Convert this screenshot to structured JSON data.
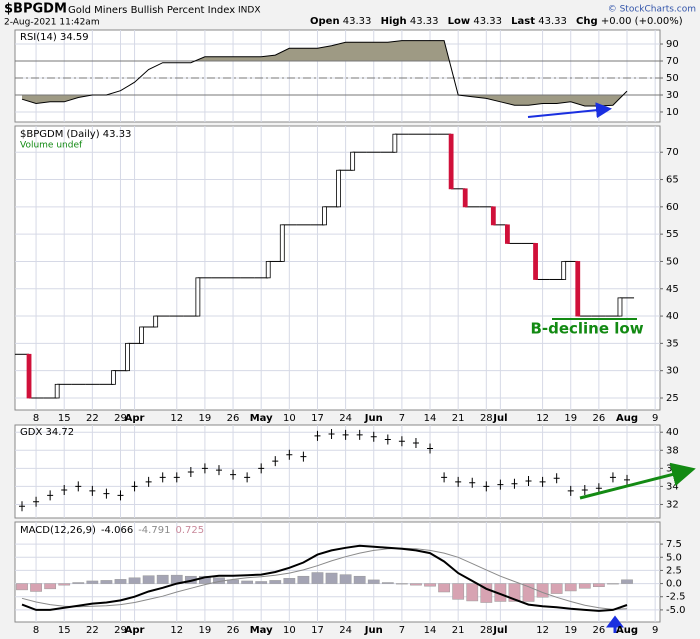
{
  "header": {
    "symbol": "$BPGDM",
    "name": "Gold Miners Bullish Percent Index",
    "exchange": "INDX",
    "date": "2-Aug-2021 11:42am",
    "quote": [
      {
        "label": "Open",
        "value": "43.33"
      },
      {
        "label": "High",
        "value": "43.33"
      },
      {
        "label": "Low",
        "value": "43.33"
      },
      {
        "label": "Last",
        "value": "43.33"
      },
      {
        "label": "Chg",
        "value": "+0.00 (+0.00%)"
      }
    ],
    "copyright": "© StockCharts.com"
  },
  "chart_data": [
    {
      "type": "line",
      "title": "RSI(14) 34.59",
      "color": "#000000",
      "fill_color": "#9e9a84",
      "overbought": 70,
      "midline": 50,
      "oversold": 30,
      "values": [
        25,
        20,
        22,
        22,
        27,
        30,
        30,
        35,
        45,
        60,
        68,
        68,
        68,
        75,
        75,
        75,
        75,
        75,
        77,
        85,
        85,
        85,
        88,
        92,
        92,
        92,
        92,
        94,
        94,
        94,
        94,
        30,
        28,
        26,
        22,
        18,
        18,
        20,
        20,
        22,
        17,
        17,
        18,
        34.59,
        null,
        null
      ],
      "ylim": [
        -1.8,
        106.5
      ],
      "yticks": [
        10,
        30,
        50,
        70,
        90
      ],
      "grid": true
    },
    {
      "type": "step",
      "title": "$BPGDM (Daily) 43.33",
      "subtitle": "Volume undef",
      "color_up": "#ffffff",
      "color_down": "#d0103a",
      "categories": [
        null,
        "8",
        null,
        "15",
        null,
        "22",
        null,
        "29",
        "Apr",
        null,
        null,
        "12",
        null,
        "19",
        null,
        "26",
        null,
        "May",
        null,
        "10",
        null,
        "17",
        null,
        "24",
        null,
        "Jun",
        null,
        "7",
        null,
        "14",
        null,
        "21",
        null,
        "28",
        "Jul",
        null,
        null,
        "12",
        null,
        "19",
        null,
        "26",
        null,
        "Aug",
        null,
        "9"
      ],
      "values": [
        33,
        25,
        25,
        27.5,
        27.5,
        27.5,
        27.5,
        30,
        35,
        38,
        40,
        40,
        40,
        47,
        47,
        47,
        47,
        47,
        50,
        56.7,
        56.7,
        56.7,
        60,
        66.7,
        70,
        70,
        70,
        73.3,
        73.3,
        73.3,
        73.3,
        63.3,
        60,
        60,
        56.7,
        53.3,
        53.3,
        46.7,
        46.7,
        50,
        40,
        40,
        40,
        43.33,
        null,
        null
      ],
      "ylim": [
        22.8,
        74.8
      ],
      "yticks": [
        25,
        30,
        35,
        40,
        45,
        50,
        55,
        60,
        65,
        70
      ],
      "grid": true,
      "annotations": [
        {
          "text": "B-decline low",
          "color": "#138a13"
        }
      ]
    },
    {
      "type": "ohlc",
      "title": "GDX 34.72",
      "color": "#000000",
      "values": [
        31.8,
        32.3,
        33,
        33.6,
        34,
        33.5,
        33.2,
        33,
        34,
        34.5,
        35,
        35,
        35.6,
        36,
        35.8,
        35.3,
        35,
        36,
        36.8,
        37.5,
        37.3,
        39.6,
        39.8,
        39.7,
        39.7,
        39.5,
        39.2,
        39,
        38.8,
        38.2,
        35,
        34.5,
        34.4,
        34,
        34.2,
        34.3,
        34.6,
        34.5,
        34.9,
        33.5,
        33.6,
        33.8,
        35,
        34.72,
        null,
        null
      ],
      "ylim": [
        30.5,
        40.8
      ],
      "yticks": [
        32,
        34,
        36,
        38,
        40
      ],
      "grid": true
    },
    {
      "type": "macd",
      "title": "MACD(12,26,9)",
      "categories": [
        null,
        "8",
        null,
        "15",
        null,
        "22",
        null,
        "29",
        "Apr",
        null,
        null,
        "12",
        null,
        "19",
        null,
        "26",
        null,
        "May",
        null,
        "10",
        null,
        "17",
        null,
        "24",
        null,
        "Jun",
        null,
        "7",
        null,
        "14",
        null,
        "21",
        null,
        "28",
        "Jul",
        null,
        null,
        "12",
        null,
        "19",
        null,
        "26",
        null,
        "Aug",
        null,
        "9"
      ],
      "series": [
        {
          "name": "-4.066",
          "color": "#000000",
          "values": [
            -4,
            -5,
            -5,
            -4.6,
            -4.2,
            -3.8,
            -3.6,
            -3.2,
            -2.5,
            -1.5,
            -0.8,
            0,
            0.5,
            1.2,
            1.5,
            1.5,
            1.6,
            1.7,
            2.2,
            3,
            4,
            5.5,
            6.3,
            6.8,
            7.2,
            7,
            6.8,
            6.6,
            6.3,
            5.8,
            4.2,
            2,
            0.5,
            -1,
            -2,
            -3,
            -4,
            -4.3,
            -4.5,
            -4.8,
            -5,
            -5.2,
            -5,
            -4.066,
            null,
            null
          ]
        },
        {
          "name": "-4.791",
          "color": "#8a8a8a",
          "values": [
            -2.8,
            -3.5,
            -4,
            -4.3,
            -4.4,
            -4.3,
            -4.2,
            -4,
            -3.6,
            -3,
            -2.4,
            -1.6,
            -0.9,
            -0.2,
            0.4,
            0.8,
            1.1,
            1.3,
            1.6,
            2,
            2.6,
            3.4,
            4.3,
            5.1,
            5.8,
            6.3,
            6.6,
            6.7,
            6.6,
            6.3,
            5.8,
            5,
            3.8,
            2.6,
            1.4,
            0.4,
            -0.6,
            -1.7,
            -2.6,
            -3.4,
            -4.1,
            -4.6,
            -4.9,
            -4.791,
            null,
            null
          ]
        },
        {
          "name": "0.725",
          "color": "#c98a9c",
          "color_up": "#a4a4b4",
          "color_down": "#d7a3b2",
          "values": [
            -1.2,
            -1.5,
            -1,
            -0.3,
            0.2,
            0.5,
            0.6,
            0.8,
            1.1,
            1.5,
            1.6,
            1.6,
            1.4,
            1.4,
            1.1,
            0.7,
            0.5,
            0.4,
            0.6,
            1,
            1.4,
            2.1,
            2,
            1.7,
            1.4,
            0.7,
            0.2,
            -0.1,
            -0.3,
            -0.5,
            -1.6,
            -3,
            -3.3,
            -3.6,
            -3.4,
            -3.4,
            -3.4,
            -2.6,
            -1.9,
            -1.4,
            -0.9,
            -0.6,
            -0.1,
            0.725,
            null,
            null
          ]
        }
      ],
      "ylim": [
        -7.3,
        11.7
      ],
      "yticks": [
        7.5,
        {
          "value": 5,
          "label": "5.0"
        },
        2.5,
        {
          "value": 0,
          "label": "0.0"
        },
        -2.5,
        {
          "value": -5,
          "label": "-5.0"
        }
      ],
      "grid": true
    }
  ]
}
